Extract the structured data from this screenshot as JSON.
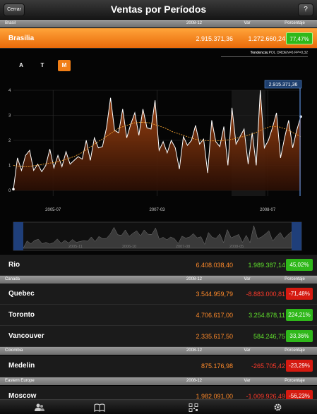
{
  "nav": {
    "title": "Ventas por Períodos",
    "close_label": "Cerrar",
    "help_label": "?"
  },
  "columns": {
    "period": "2008-12",
    "var": "Var",
    "pct": "Porcentaje"
  },
  "sections": [
    {
      "name": "Brasil"
    },
    {
      "name": "Canada"
    },
    {
      "name": "Colombia"
    },
    {
      "name": "Eastern Europe"
    }
  ],
  "rows": {
    "brasilia": {
      "name": "Brasilia",
      "value": "2.915.371,36",
      "var": "1.272.660,24",
      "pct": "77,47%"
    },
    "rio": {
      "name": "Rio",
      "value": "6.408.038,40",
      "var": "1.989.387,14",
      "pct": "45,02%"
    },
    "quebec": {
      "name": "Quebec",
      "value": "3.544.959,79",
      "var": "-8.883.000,81",
      "pct": "-71,48%"
    },
    "toronto": {
      "name": "Toronto",
      "value": "4.706.617,00",
      "var": "3.254.878,11",
      "pct": "224,21%"
    },
    "vancouver": {
      "name": "Vancouver",
      "value": "2.335.617,50",
      "var": "584.246,75",
      "pct": "33,36%"
    },
    "medelin": {
      "name": "Medelin",
      "value": "875.176,98",
      "var": "-265.705,42",
      "pct": "-23,29%"
    },
    "moscow": {
      "name": "Moscow",
      "value": "1.982.091,00",
      "var": "-1.009.926,49",
      "pct": "-56,23%"
    }
  },
  "chart": {
    "trend_label": "Tendencia:",
    "trend_value": "POL ORDEN=6 FP=0,32",
    "tabs": [
      "A",
      "T",
      "M"
    ],
    "active_tab": "M",
    "callout": "2.915.371,36",
    "y_ticks": [
      "4",
      "3",
      "2",
      "1",
      "0"
    ],
    "x_ticks": [
      "2005-07",
      "2007-03",
      "2008-07"
    ],
    "nav_ticks": [
      "2005-11",
      "2006-10",
      "2007-08",
      "2008-05"
    ],
    "accent": "#f07e16"
  },
  "chart_data": {
    "type": "area",
    "title": "",
    "xlabel": "",
    "ylabel": "",
    "ylim": [
      0,
      4
    ],
    "series": [
      {
        "values": [
          0.05,
          1.3,
          0.8,
          1.4,
          1.6,
          0.8,
          1.05,
          0.75,
          1.0,
          1.65,
          0.9,
          1.4,
          0.95,
          1.55,
          1.05,
          1.2,
          1.35,
          1.25,
          2.0,
          1.2,
          2.1,
          1.7,
          1.75,
          2.5,
          3.7,
          2.4,
          2.3,
          3.25,
          2.1,
          2.65,
          3.1,
          2.2,
          3.25,
          2.5,
          2.45,
          3.6,
          1.6,
          1.95,
          1.5,
          2.0,
          1.7,
          0.85,
          2.15,
          1.8,
          2.0,
          2.6,
          1.85,
          2.05,
          0.7,
          2.8,
          1.95,
          1.75,
          2.55,
          1.0,
          3.3,
          1.85,
          2.15,
          2.45,
          1.05,
          2.3,
          1.0,
          4.0,
          1.7,
          2.0,
          2.5,
          3.1,
          1.3,
          2.1,
          2.8,
          1.7,
          2.4,
          2.95
        ]
      },
      {
        "values": [
          1.0,
          0.95,
          0.95,
          1.0,
          1.05,
          1.1,
          1.15,
          1.25,
          1.35,
          1.5,
          1.7,
          1.9,
          2.1,
          2.3,
          2.5,
          2.6,
          2.7,
          2.72,
          2.7,
          2.6,
          2.5,
          2.35,
          2.25,
          2.15,
          2.05,
          2.0,
          1.98,
          1.98,
          2.0,
          2.05,
          2.12,
          2.2,
          2.3,
          2.45,
          2.55,
          2.55,
          2.45,
          2.3,
          2.15
        ]
      }
    ]
  }
}
